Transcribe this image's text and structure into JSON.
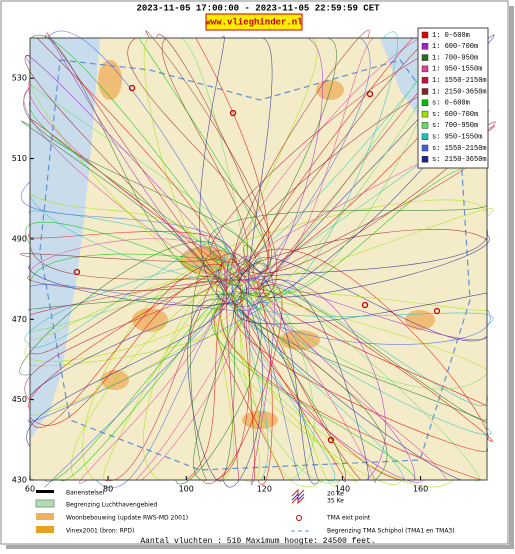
{
  "header": {
    "period": "2023-11-05 17:00:00 - 2023-11-05 22:59:59 CET",
    "site": "www.vlieghinder.nl"
  },
  "map": {
    "xlim": [
      60,
      177
    ],
    "ylim": [
      430,
      540
    ],
    "xticks": [
      60,
      80,
      100,
      120,
      140,
      160
    ],
    "yticks": [
      430,
      450,
      470,
      490,
      510,
      530
    ]
  },
  "legend": [
    {
      "label": "1: 0-600m",
      "color": "#e00000"
    },
    {
      "label": "1: 600-700m",
      "color": "#a020d0"
    },
    {
      "label": "1: 700-950m",
      "color": "#207020"
    },
    {
      "label": "1: 950-1550m",
      "color": "#e040a0"
    },
    {
      "label": "1: 1550-2150m",
      "color": "#c01040"
    },
    {
      "label": "1: 2150-3650m",
      "color": "#902020"
    },
    {
      "label": "s: 0-600m",
      "color": "#00c000"
    },
    {
      "label": "s: 600-700m",
      "color": "#a0e000"
    },
    {
      "label": "s: 700-950m",
      "color": "#60e060"
    },
    {
      "label": "s: 950-1550m",
      "color": "#20c0c0"
    },
    {
      "label": "s: 1550-2150m",
      "color": "#4060e0"
    },
    {
      "label": "s: 2150-3650m",
      "color": "#202090"
    }
  ],
  "map_key": {
    "runways": "Banenstelsel",
    "airport_boundary": "Begrenzing Luchthavengebied",
    "housing": "Woonbebouwing (update RWS-MD 2001)",
    "vinex": "Vinex2001 (bron: RPD)",
    "noise_20": "20 Ke",
    "noise_35": "35 Ke",
    "exit_point": "TMA exit point",
    "tma_boundary": "Begrenzing TMA Schiphol  (TMA1 en TMA3)"
  },
  "footer": "Aantal vluchten : 510 Maximum hoogte: 24500 feet."
}
